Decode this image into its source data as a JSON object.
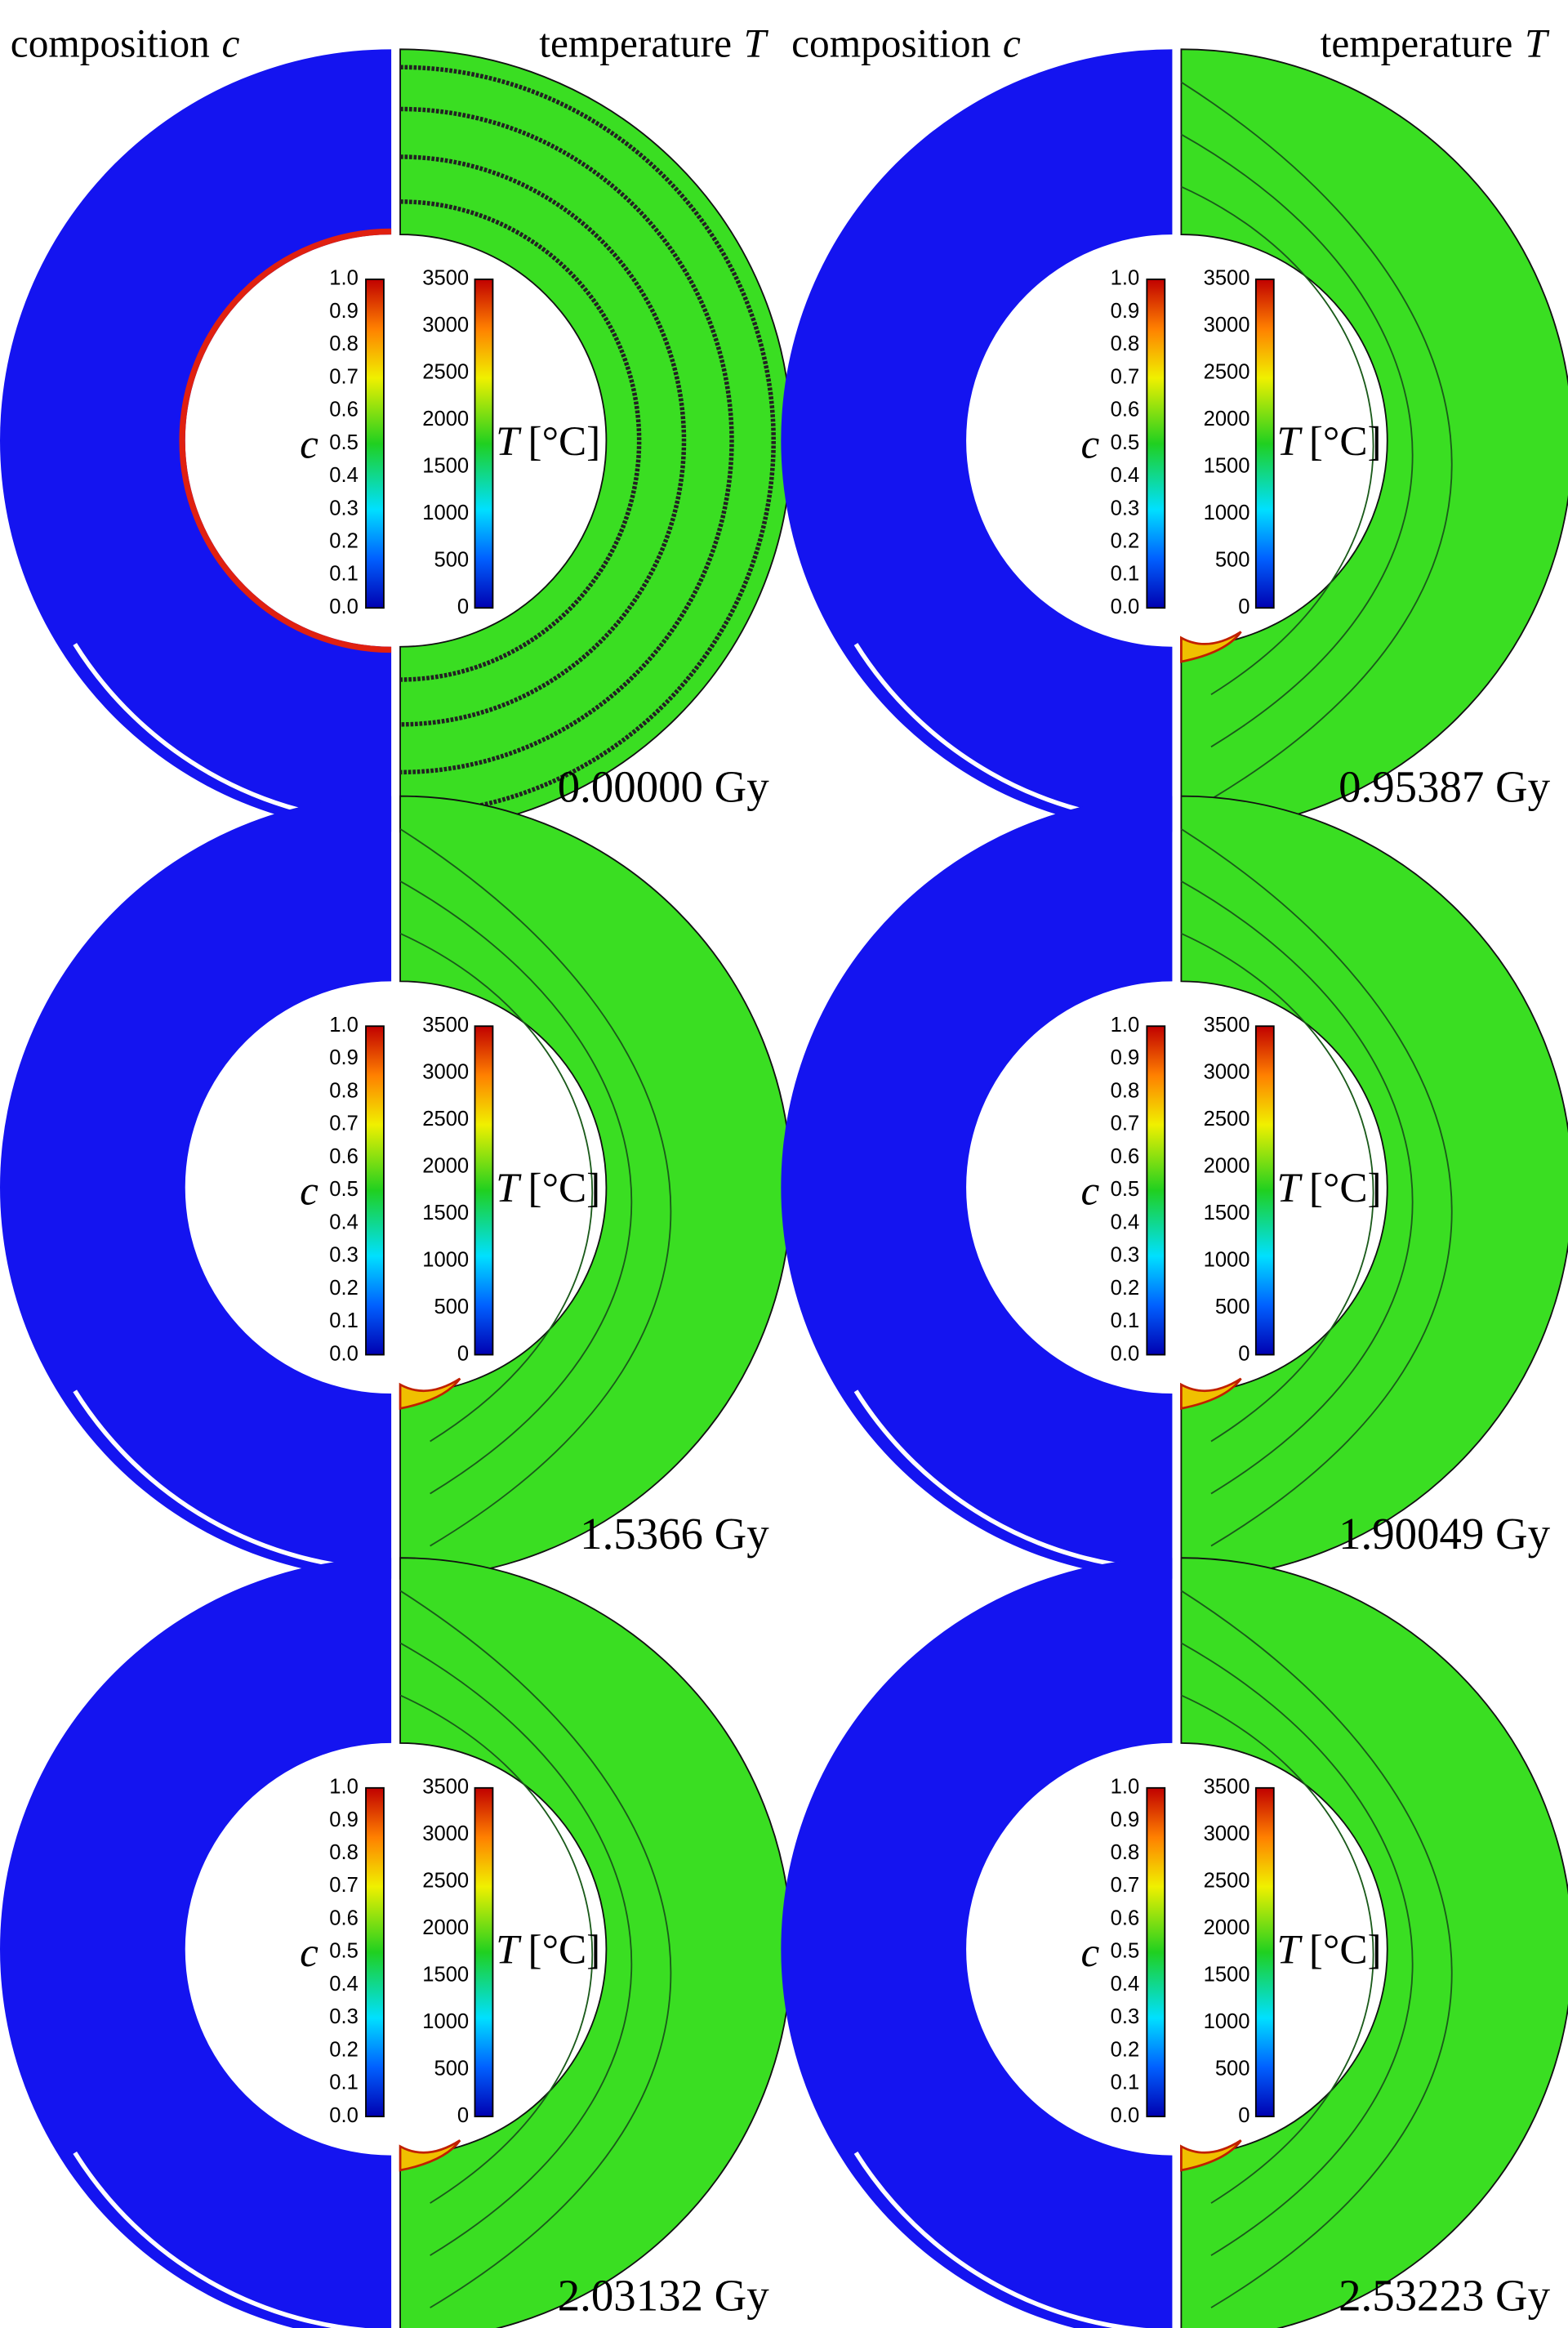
{
  "columns": [
    {
      "composition": "composition",
      "composition_symbol": "c",
      "temperature": "temperature",
      "temperature_symbol": "T"
    },
    {
      "composition": "composition",
      "composition_symbol": "c",
      "temperature": "temperature",
      "temperature_symbol": "T"
    }
  ],
  "colorbar": {
    "c_symbol": "c",
    "c_ticks": [
      "0.0",
      "0.1",
      "0.2",
      "0.3",
      "0.4",
      "0.5",
      "0.6",
      "0.7",
      "0.8",
      "0.9",
      "1.0"
    ],
    "T_symbol": "T",
    "T_unit": "[°C]",
    "T_ticks": [
      0,
      500,
      1000,
      1500,
      2000,
      2500,
      3000,
      3500
    ]
  },
  "panels": [
    {
      "time": "0.00000 Gy"
    },
    {
      "time": "0.95387 Gy"
    },
    {
      "time": "1.5366 Gy"
    },
    {
      "time": "1.90049 Gy"
    },
    {
      "time": "2.03132 Gy"
    },
    {
      "time": "2.53223 Gy"
    }
  ]
}
